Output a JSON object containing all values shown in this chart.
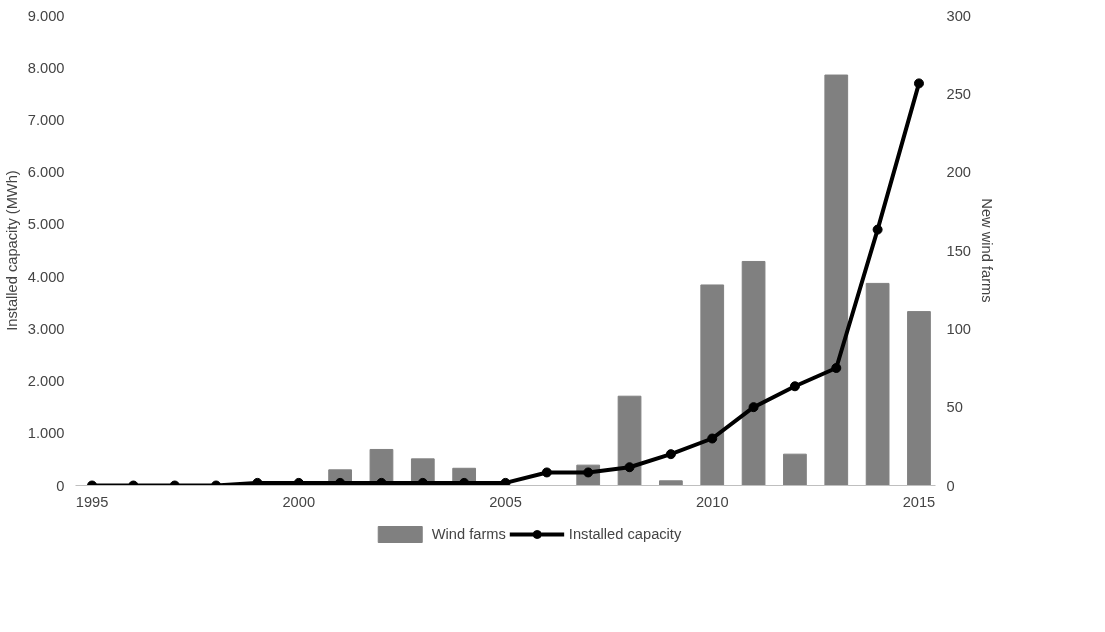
{
  "chart_data": {
    "type": "bar",
    "x": [
      1995,
      1996,
      1997,
      1998,
      1999,
      2000,
      2001,
      2002,
      2003,
      2004,
      2005,
      2006,
      2007,
      2008,
      2009,
      2010,
      2011,
      2012,
      2013,
      2014,
      2015
    ],
    "series": [
      {
        "name": "Wind farms",
        "axis": "y2",
        "color": "#808080",
        "values": [
          0,
          0,
          0,
          0,
          0,
          0,
          10,
          23,
          17,
          11,
          0,
          0,
          13,
          57,
          3,
          128,
          143,
          20,
          262,
          129,
          111
        ]
      },
      {
        "name": "Installed capacity",
        "type": "line",
        "color": "#000000",
        "marker": "circle",
        "values": [
          0,
          0,
          0,
          0,
          50,
          50,
          50,
          50,
          50,
          50,
          50,
          250,
          250,
          350,
          600,
          900,
          1500,
          1900,
          2250,
          4900,
          7700
        ]
      }
    ],
    "ylabel": "Installed capacity (MWh)",
    "y2label": "New wind farms",
    "xlim": [
      1994.6,
      2015.4
    ],
    "xticks": [
      1995,
      2000,
      2005,
      2010,
      2015
    ],
    "ylim": [
      0,
      9000
    ],
    "yticks": [
      0,
      {
        "value": 1000,
        "label": "1.000"
      },
      {
        "value": 2000,
        "label": "2.000"
      },
      {
        "value": 3000,
        "label": "3.000"
      },
      {
        "value": 4000,
        "label": "4.000"
      },
      {
        "value": 5000,
        "label": "5.000"
      },
      {
        "value": 6000,
        "label": "6.000"
      },
      {
        "value": 7000,
        "label": "7.000"
      },
      {
        "value": 8000,
        "label": "8.000"
      },
      {
        "value": 9000,
        "label": "9.000"
      }
    ],
    "y2lim": [
      0,
      300
    ],
    "y2ticks": [
      0,
      50,
      100,
      150,
      200,
      250,
      300
    ],
    "grid": false,
    "legend": "bottom"
  }
}
